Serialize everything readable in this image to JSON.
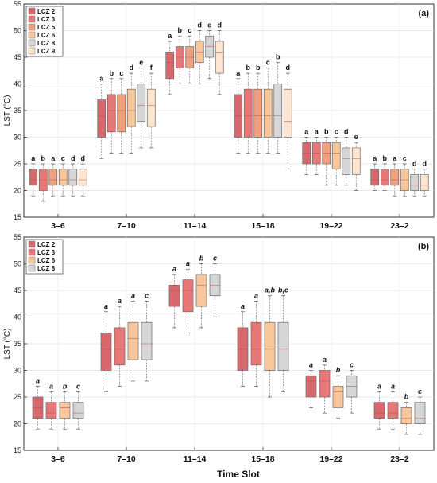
{
  "x_axis_title": "Time Slot",
  "chart_data": [
    {
      "type": "box",
      "panel_label": "(a)",
      "ylabel": "LST (°C)",
      "ylim": [
        15,
        55
      ],
      "yticks": [
        15,
        20,
        25,
        30,
        35,
        40,
        45,
        50,
        55
      ],
      "grid": true,
      "legend_position": "top-left",
      "letter_style": "normal",
      "categories": [
        "3–6",
        "7–10",
        "11–14",
        "15–18",
        "19–22",
        "23–2"
      ],
      "series": [
        {
          "name": "LCZ 2",
          "color": "#d9686e",
          "boxes": [
            {
              "lo": 19,
              "q1": 21,
              "med": 22,
              "q3": 24,
              "hi": 25
            },
            {
              "lo": 26,
              "q1": 30,
              "med": 34,
              "q3": 37,
              "hi": 40
            },
            {
              "lo": 38,
              "q1": 41,
              "med": 44,
              "q3": 46,
              "hi": 48
            },
            {
              "lo": 27,
              "q1": 30,
              "med": 34,
              "q3": 38,
              "hi": 41
            },
            {
              "lo": 23,
              "q1": 25,
              "med": 27,
              "q3": 29,
              "hi": 30
            },
            {
              "lo": 20,
              "q1": 21,
              "med": 22,
              "q3": 24,
              "hi": 25
            }
          ]
        },
        {
          "name": "LCZ 3",
          "color": "#e87878",
          "boxes": [
            {
              "lo": 18,
              "q1": 20,
              "med": 22,
              "q3": 24,
              "hi": 25
            },
            {
              "lo": 27,
              "q1": 31,
              "med": 35,
              "q3": 38,
              "hi": 41
            },
            {
              "lo": 40,
              "q1": 43,
              "med": 45,
              "q3": 47,
              "hi": 49
            },
            {
              "lo": 27,
              "q1": 30,
              "med": 34,
              "q3": 39,
              "hi": 42
            },
            {
              "lo": 23,
              "q1": 25,
              "med": 27,
              "q3": 29,
              "hi": 30
            },
            {
              "lo": 20,
              "q1": 21,
              "med": 22,
              "q3": 24,
              "hi": 25
            }
          ]
        },
        {
          "name": "LCZ 5",
          "color": "#f0a07e",
          "boxes": [
            {
              "lo": 19,
              "q1": 21,
              "med": 22,
              "q3": 24,
              "hi": 25
            },
            {
              "lo": 27,
              "q1": 31,
              "med": 35,
              "q3": 38,
              "hi": 41
            },
            {
              "lo": 40,
              "q1": 43,
              "med": 45,
              "q3": 47,
              "hi": 49
            },
            {
              "lo": 27,
              "q1": 30,
              "med": 34,
              "q3": 39,
              "hi": 42
            },
            {
              "lo": 21,
              "q1": 25,
              "med": 27,
              "q3": 29,
              "hi": 30
            },
            {
              "lo": 19,
              "q1": 21,
              "med": 22,
              "q3": 24,
              "hi": 25
            }
          ]
        },
        {
          "name": "LCZ 6",
          "color": "#f8c69b",
          "boxes": [
            {
              "lo": 19,
              "q1": 21,
              "med": 22,
              "q3": 24,
              "hi": 25
            },
            {
              "lo": 27,
              "q1": 32,
              "med": 35,
              "q3": 39,
              "hi": 42
            },
            {
              "lo": 40,
              "q1": 44,
              "med": 46,
              "q3": 48,
              "hi": 50
            },
            {
              "lo": 27,
              "q1": 30,
              "med": 34,
              "q3": 39,
              "hi": 43
            },
            {
              "lo": 21,
              "q1": 24,
              "med": 27,
              "q3": 29,
              "hi": 30
            },
            {
              "lo": 19,
              "q1": 20,
              "med": 22,
              "q3": 24,
              "hi": 25
            }
          ]
        },
        {
          "name": "LCZ 8",
          "color": "#d6d6d6",
          "boxes": [
            {
              "lo": 19,
              "q1": 21,
              "med": 22,
              "q3": 24,
              "hi": 25
            },
            {
              "lo": 28,
              "q1": 33,
              "med": 36,
              "q3": 40,
              "hi": 43
            },
            {
              "lo": 41,
              "q1": 45,
              "med": 47,
              "q3": 49,
              "hi": 50
            },
            {
              "lo": 27,
              "q1": 30,
              "med": 34,
              "q3": 40,
              "hi": 44
            },
            {
              "lo": 21,
              "q1": 23,
              "med": 26,
              "q3": 28,
              "hi": 30
            },
            {
              "lo": 19,
              "q1": 20,
              "med": 21,
              "q3": 23,
              "hi": 24
            }
          ]
        },
        {
          "name": "LCZ 9",
          "color": "#fde5cf",
          "boxes": [
            {
              "lo": 19,
              "q1": 21,
              "med": 22,
              "q3": 24,
              "hi": 25
            },
            {
              "lo": 28,
              "q1": 32,
              "med": 36,
              "q3": 39,
              "hi": 42
            },
            {
              "lo": 38,
              "q1": 42,
              "med": 46,
              "q3": 48,
              "hi": 50
            },
            {
              "lo": 24,
              "q1": 30,
              "med": 33,
              "q3": 39,
              "hi": 42
            },
            {
              "lo": 20,
              "q1": 23,
              "med": 26,
              "q3": 28,
              "hi": 29
            },
            {
              "lo": 19,
              "q1": 20,
              "med": 21,
              "q3": 23,
              "hi": 24
            }
          ]
        }
      ],
      "letters": [
        [
          "a",
          "b",
          "a",
          "c",
          "d",
          "d"
        ],
        [
          "a",
          "b",
          "c",
          "d",
          "e",
          "f"
        ],
        [
          "a",
          "b",
          "c",
          "d",
          "e",
          "d"
        ],
        [
          "a",
          "b",
          "b",
          "c",
          "b",
          "d"
        ],
        [
          "a",
          "a",
          "b",
          "c",
          "d",
          "e"
        ],
        [
          "a",
          "b",
          "a",
          "c",
          "d",
          "d"
        ]
      ]
    },
    {
      "type": "box",
      "panel_label": "(b)",
      "ylabel": "LST (°C)",
      "ylim": [
        15,
        55
      ],
      "yticks": [
        15,
        20,
        25,
        30,
        35,
        40,
        45,
        50,
        55
      ],
      "grid": true,
      "legend_position": "top-left",
      "letter_style": "italic",
      "categories": [
        "3–6",
        "7–10",
        "11–14",
        "15–18",
        "19–22",
        "23–2"
      ],
      "series": [
        {
          "name": "LCZ 2",
          "color": "#d9686e",
          "boxes": [
            {
              "lo": 19,
              "q1": 21,
              "med": 23,
              "q3": 25,
              "hi": 27
            },
            {
              "lo": 26,
              "q1": 30,
              "med": 34,
              "q3": 37,
              "hi": 41
            },
            {
              "lo": 38,
              "q1": 42,
              "med": 45,
              "q3": 46,
              "hi": 48
            },
            {
              "lo": 27,
              "q1": 30,
              "med": 34,
              "q3": 38,
              "hi": 41
            },
            {
              "lo": 23,
              "q1": 25,
              "med": 28,
              "q3": 29,
              "hi": 30
            },
            {
              "lo": 19,
              "q1": 21,
              "med": 22,
              "q3": 24,
              "hi": 26
            }
          ]
        },
        {
          "name": "LCZ 3",
          "color": "#e87878",
          "boxes": [
            {
              "lo": 19,
              "q1": 21,
              "med": 22,
              "q3": 24,
              "hi": 26
            },
            {
              "lo": 27,
              "q1": 31,
              "med": 34,
              "q3": 38,
              "hi": 42
            },
            {
              "lo": 37,
              "q1": 41,
              "med": 45,
              "q3": 47,
              "hi": 49
            },
            {
              "lo": 27,
              "q1": 31,
              "med": 34,
              "q3": 39,
              "hi": 43
            },
            {
              "lo": 22,
              "q1": 25,
              "med": 28,
              "q3": 30,
              "hi": 31
            },
            {
              "lo": 19,
              "q1": 21,
              "med": 22,
              "q3": 24,
              "hi": 26
            }
          ]
        },
        {
          "name": "LCZ 6",
          "color": "#f8c69b",
          "boxes": [
            {
              "lo": 19,
              "q1": 21,
              "med": 23,
              "q3": 24,
              "hi": 26
            },
            {
              "lo": 28,
              "q1": 32,
              "med": 36,
              "q3": 39,
              "hi": 43
            },
            {
              "lo": 38,
              "q1": 42,
              "med": 46,
              "q3": 48,
              "hi": 50
            },
            {
              "lo": 25,
              "q1": 30,
              "med": 34,
              "q3": 39,
              "hi": 44
            },
            {
              "lo": 21,
              "q1": 23,
              "med": 26,
              "q3": 27,
              "hi": 29
            },
            {
              "lo": 18,
              "q1": 20,
              "med": 21,
              "q3": 23,
              "hi": 24
            }
          ]
        },
        {
          "name": "LCZ 8",
          "color": "#d6d6d6",
          "boxes": [
            {
              "lo": 19,
              "q1": 21,
              "med": 22,
              "q3": 24,
              "hi": 26
            },
            {
              "lo": 28,
              "q1": 32,
              "med": 35,
              "q3": 39,
              "hi": 43
            },
            {
              "lo": 40,
              "q1": 44,
              "med": 46,
              "q3": 48,
              "hi": 50
            },
            {
              "lo": 26,
              "q1": 30,
              "med": 34,
              "q3": 39,
              "hi": 44
            },
            {
              "lo": 22,
              "q1": 25,
              "med": 27,
              "q3": 29,
              "hi": 30
            },
            {
              "lo": 18,
              "q1": 20,
              "med": 21,
              "q3": 24,
              "hi": 25
            }
          ]
        }
      ],
      "letters": [
        [
          "a",
          "a",
          "b",
          "c"
        ],
        [
          "a",
          "a",
          "a",
          "c"
        ],
        [
          "a",
          "a",
          "b",
          "c"
        ],
        [
          "a",
          "a",
          "a,b",
          "b,c"
        ],
        [
          "a",
          "a",
          "b",
          "c"
        ],
        [
          "a",
          "a",
          "b",
          "c"
        ]
      ]
    }
  ]
}
